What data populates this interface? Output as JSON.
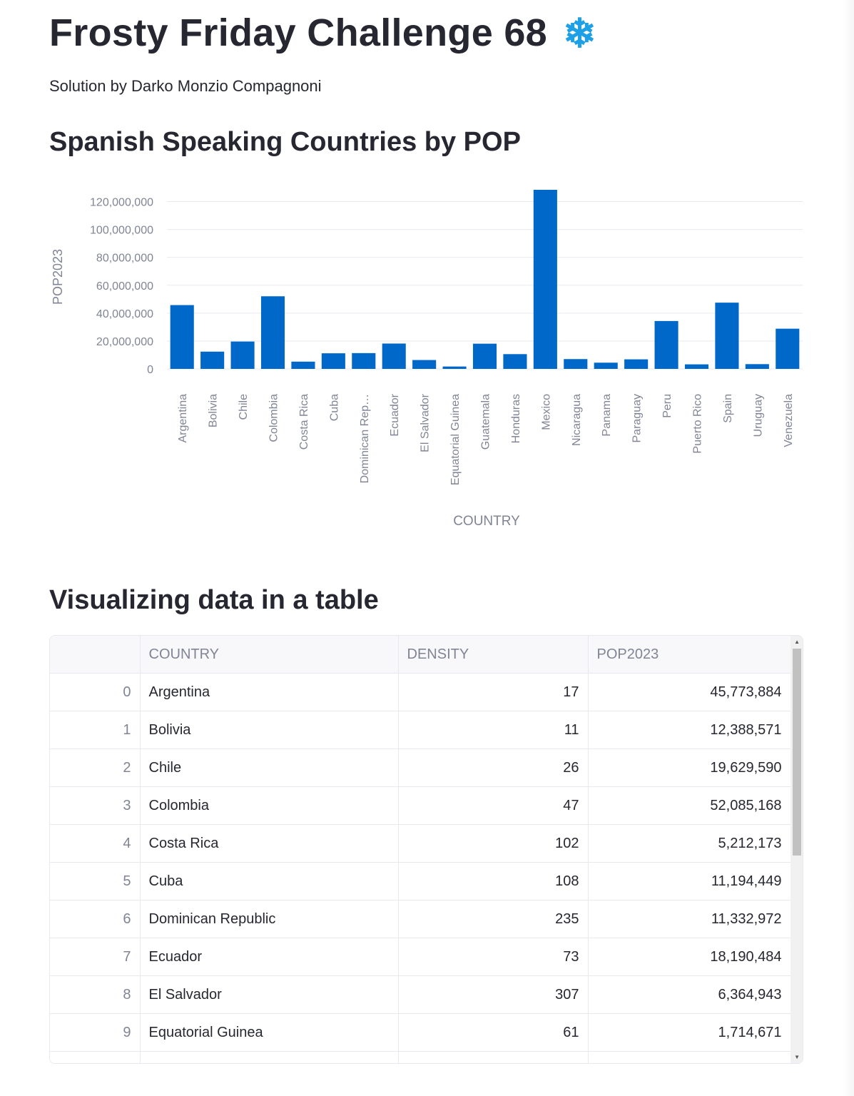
{
  "page": {
    "title": "Frosty Friday Challenge 68",
    "title_icon": "snowflake-icon",
    "title_icon_glyph": "❄",
    "subtitle": "Solution by Darko Monzio Compagnoni",
    "chart_heading": "Spanish Speaking Countries by POP",
    "table_heading": "Visualizing data in a table"
  },
  "colors": {
    "bar": "#0068c9",
    "text": "#262730",
    "muted": "#808495",
    "grid": "#e6e9ef"
  },
  "chart_data": {
    "type": "bar",
    "categories": [
      "Argentina",
      "Bolivia",
      "Chile",
      "Colombia",
      "Costa Rica",
      "Cuba",
      "Dominican Rep…",
      "Ecuador",
      "El Salvador",
      "Equatorial Guinea",
      "Guatemala",
      "Honduras",
      "Mexico",
      "Nicaragua",
      "Panama",
      "Paraguay",
      "Peru",
      "Puerto Rico",
      "Spain",
      "Uruguay",
      "Venezuela"
    ],
    "values": [
      45773884,
      12388571,
      19629590,
      52085168,
      5212173,
      11194449,
      11332972,
      18190484,
      6364943,
      1714671,
      18092026,
      10593798,
      128455567,
      7046310,
      4468087,
      6861524,
      34352719,
      3260314,
      47519628,
      3423108,
      28838499
    ],
    "xlabel": "COUNTRY",
    "ylabel": "POP2023",
    "ylim": [
      0,
      128455567
    ],
    "yticks": [
      0,
      20000000,
      40000000,
      60000000,
      80000000,
      100000000,
      120000000
    ],
    "ytick_labels": [
      "0",
      "20,000,000",
      "40,000,000",
      "60,000,000",
      "80,000,000",
      "100,000,000",
      "120,000,000"
    ],
    "grid": true
  },
  "table": {
    "columns": [
      "",
      "COUNTRY",
      "DENSITY",
      "POP2023"
    ],
    "rows": [
      [
        "0",
        "Argentina",
        "17",
        "45,773,884"
      ],
      [
        "1",
        "Bolivia",
        "11",
        "12,388,571"
      ],
      [
        "2",
        "Chile",
        "26",
        "19,629,590"
      ],
      [
        "3",
        "Colombia",
        "47",
        "52,085,168"
      ],
      [
        "4",
        "Costa Rica",
        "102",
        "5,212,173"
      ],
      [
        "5",
        "Cuba",
        "108",
        "11,194,449"
      ],
      [
        "6",
        "Dominican Republic",
        "235",
        "11,332,972"
      ],
      [
        "7",
        "Ecuador",
        "73",
        "18,190,484"
      ],
      [
        "8",
        "El Salvador",
        "307",
        "6,364,943"
      ],
      [
        "9",
        "Equatorial Guinea",
        "61",
        "1,714,671"
      ]
    ]
  }
}
